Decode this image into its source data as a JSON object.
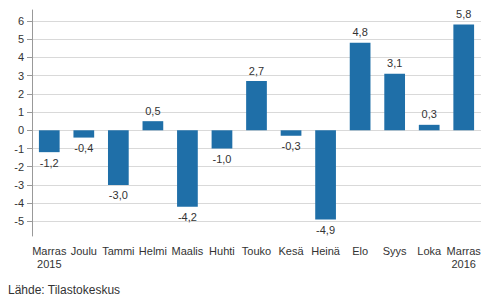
{
  "chart_data": {
    "type": "bar",
    "categories": [
      "Marras\n2015",
      "Joulu",
      "Tammi",
      "Helmi",
      "Maalis",
      "Huhti",
      "Touko",
      "Kesä",
      "Heinä",
      "Elo",
      "Syys",
      "Loka",
      "Marras\n2016"
    ],
    "values": [
      -1.2,
      -0.4,
      -3.0,
      0.5,
      -4.2,
      -1.0,
      2.7,
      -0.3,
      -4.9,
      4.8,
      3.1,
      0.3,
      5.8
    ],
    "value_labels": [
      "-1,2",
      "-0,4",
      "-3,0",
      "0,5",
      "-4,2",
      "-1,0",
      "2,7",
      "-0,3",
      "-4,9",
      "4,8",
      "3,1",
      "0,3",
      "5,8"
    ],
    "color": "#1f6fa8",
    "ylim": [
      -5.8,
      6.6
    ],
    "yticks": [
      -5,
      -4,
      -3,
      -2,
      -1,
      0,
      1,
      2,
      3,
      4,
      5,
      6
    ],
    "grid": true,
    "data_labels": true,
    "source": "Lähde: Tilastokeskus"
  }
}
